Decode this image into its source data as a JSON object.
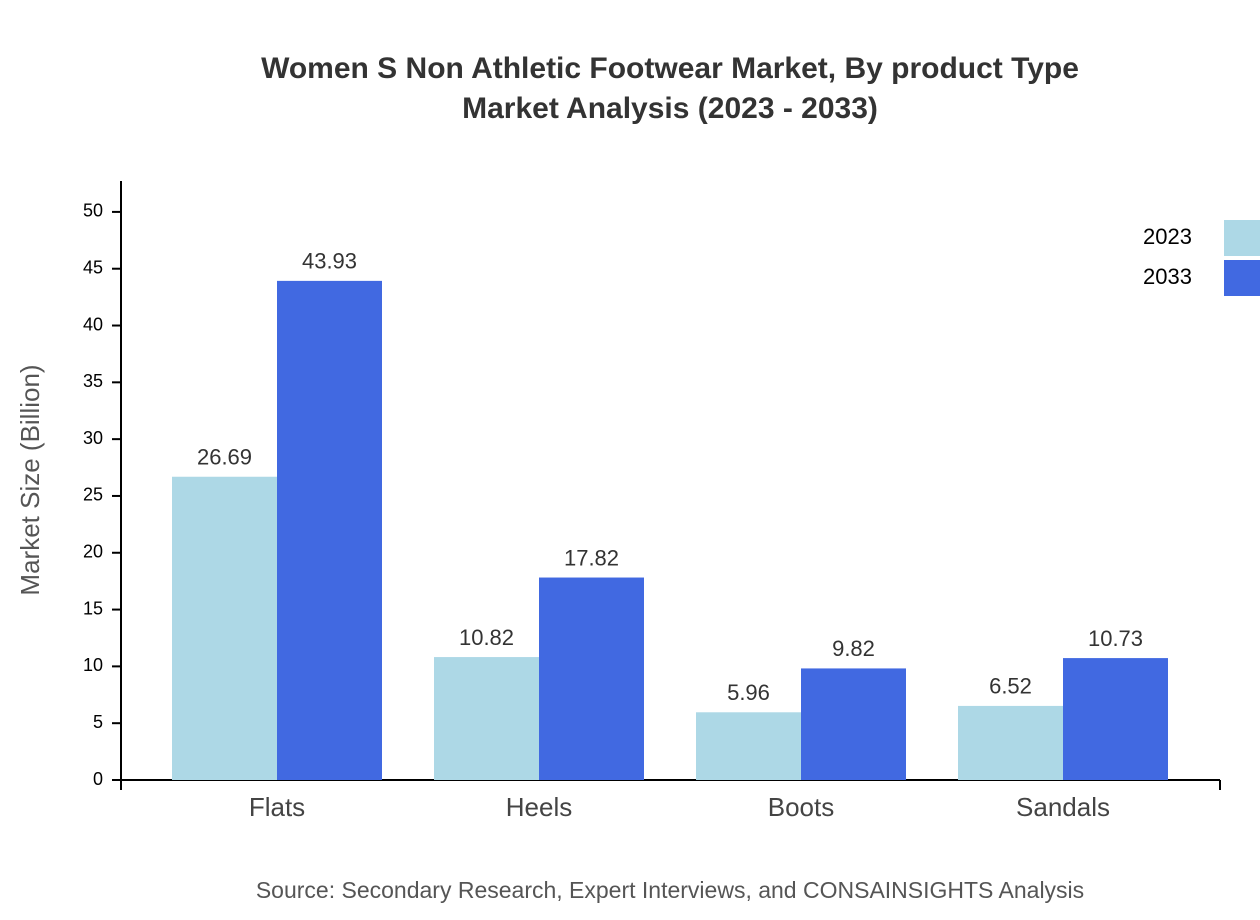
{
  "chart_data": {
    "type": "bar",
    "title": "Women S Non Athletic Footwear Market, By product Type",
    "subtitle": "Market Analysis (2023 - 2033)",
    "y_label": "Market Size (Billion)",
    "source": "Source: Secondary Research, Expert Interviews, and CONSAINSIGHTS Analysis",
    "categories": [
      "Flats",
      "Heels",
      "Boots",
      "Sandals"
    ],
    "series": [
      {
        "name": "2023",
        "color": "#add8e6",
        "values": [
          26.69,
          10.82,
          5.96,
          6.52
        ]
      },
      {
        "name": "2033",
        "color": "#4169e1",
        "values": [
          43.93,
          17.82,
          9.82,
          10.73
        ]
      }
    ],
    "ylim": [
      0,
      52.72
    ],
    "yticks": [
      0,
      5,
      10,
      15,
      20,
      25,
      30,
      35,
      40,
      45,
      50
    ],
    "legend": "top-right",
    "grid": false
  }
}
